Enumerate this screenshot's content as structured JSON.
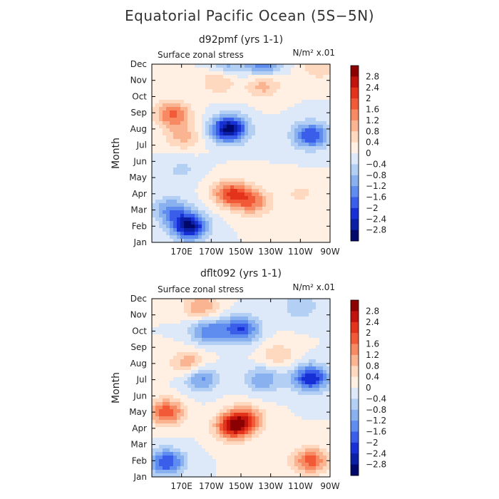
{
  "title": "Equatorial Pacific Ocean (5S−5N)",
  "chart_data": [
    {
      "type": "heatmap",
      "panel_title": "d92pmf (yrs 1-1)",
      "variable_label": "Surface zonal stress",
      "units": "N/m² x.01",
      "ylabel": "Month",
      "y_ticks": [
        "Jan",
        "Feb",
        "Mar",
        "Apr",
        "May",
        "Jun",
        "Jul",
        "Aug",
        "Sep",
        "Oct",
        "Nov",
        "Dec"
      ],
      "x_ticks": [
        "170E",
        "170W",
        "150W",
        "130W",
        "110W",
        "90W"
      ],
      "x_tick_lon": [
        170,
        190,
        210,
        230,
        250,
        270
      ],
      "x_range": [
        150,
        270
      ],
      "y_range": [
        1,
        12
      ],
      "colorbar_levels": [
        "2.8",
        "2.4",
        "2",
        "1.6",
        "1.2",
        "0.8",
        "0.4",
        "0",
        "−0.4",
        "−0.8",
        "−1.2",
        "−1.6",
        "−2",
        "−2.4",
        "−2.8"
      ],
      "colorbar_colors": [
        "#8b0000",
        "#c1120c",
        "#e4331b",
        "#f25a37",
        "#f88a63",
        "#fbb492",
        "#fed9bf",
        "#fff0e3",
        "#dde9f8",
        "#b4cff4",
        "#8ab1ef",
        "#5f8cef",
        "#3a5ee9",
        "#1730d6",
        "#0a1fa3",
        "#00086b"
      ],
      "features": [
        {
          "lon": 202,
          "month": 8.0,
          "value": -3.0
        },
        {
          "lon": 257,
          "month": 7.6,
          "value": -2.0
        },
        {
          "lon": 175,
          "month": 2.0,
          "value": -2.9
        },
        {
          "lon": 163,
          "month": 3.0,
          "value": -1.3
        },
        {
          "lon": 203,
          "month": 4.0,
          "value": 2.0
        },
        {
          "lon": 218,
          "month": 3.5,
          "value": 1.5
        },
        {
          "lon": 164,
          "month": 8.9,
          "value": 1.7
        },
        {
          "lon": 171,
          "month": 7.5,
          "value": 0.9
        },
        {
          "lon": 225,
          "month": 10.7,
          "value": 1.0
        },
        {
          "lon": 195,
          "month": 11.0,
          "value": 0.9
        },
        {
          "lon": 225,
          "month": 12.0,
          "value": -1.5
        },
        {
          "lon": 200,
          "month": 12.0,
          "value": -1.0
        },
        {
          "lon": 262,
          "month": 11.8,
          "value": 0.7
        },
        {
          "lon": 170,
          "month": 5.5,
          "value": -0.5
        },
        {
          "lon": 250,
          "month": 4.0,
          "value": 0.5
        }
      ]
    },
    {
      "type": "heatmap",
      "panel_title": "dflt092 (yrs 1-1)",
      "variable_label": "Surface zonal stress",
      "units": "N/m² x.01",
      "ylabel": "Month",
      "y_ticks": [
        "Jan",
        "Feb",
        "Mar",
        "Apr",
        "May",
        "Jun",
        "Jul",
        "Aug",
        "Sep",
        "Oct",
        "Nov",
        "Dec"
      ],
      "x_ticks": [
        "170E",
        "170W",
        "150W",
        "130W",
        "110W",
        "90W"
      ],
      "x_tick_lon": [
        170,
        190,
        210,
        230,
        250,
        270
      ],
      "x_range": [
        150,
        270
      ],
      "y_range": [
        1,
        12
      ],
      "colorbar_levels": [
        "2.8",
        "2.4",
        "2",
        "1.6",
        "1.2",
        "0.8",
        "0.4",
        "0",
        "−0.4",
        "−0.8",
        "−1.2",
        "−1.6",
        "−2",
        "−2.4",
        "−2.8"
      ],
      "colorbar_colors": [
        "#8b0000",
        "#c1120c",
        "#e4331b",
        "#f25a37",
        "#f88a63",
        "#fbb492",
        "#fed9bf",
        "#fff0e3",
        "#dde9f8",
        "#b4cff4",
        "#8ab1ef",
        "#5f8cef",
        "#3a5ee9",
        "#1730d6",
        "#0a1fa3",
        "#00086b"
      ],
      "features": [
        {
          "lon": 205,
          "month": 4.1,
          "value": 2.5
        },
        {
          "lon": 213,
          "month": 4.6,
          "value": 1.6
        },
        {
          "lon": 160,
          "month": 5.0,
          "value": 1.9
        },
        {
          "lon": 257,
          "month": 7.1,
          "value": -2.4
        },
        {
          "lon": 225,
          "month": 7.0,
          "value": -1.2
        },
        {
          "lon": 183,
          "month": 7.1,
          "value": -1.4
        },
        {
          "lon": 210,
          "month": 10.1,
          "value": -2.0
        },
        {
          "lon": 188,
          "month": 10.0,
          "value": -1.5
        },
        {
          "lon": 160,
          "month": 1.9,
          "value": -2.0
        },
        {
          "lon": 257,
          "month": 2.0,
          "value": 1.8
        },
        {
          "lon": 175,
          "month": 8.0,
          "value": 1.2
        },
        {
          "lon": 235,
          "month": 8.5,
          "value": 0.7
        },
        {
          "lon": 183,
          "month": 11.5,
          "value": 1.2
        },
        {
          "lon": 250,
          "month": 11.5,
          "value": -0.8
        },
        {
          "lon": 225,
          "month": 1.5,
          "value": 0.4
        }
      ]
    }
  ]
}
